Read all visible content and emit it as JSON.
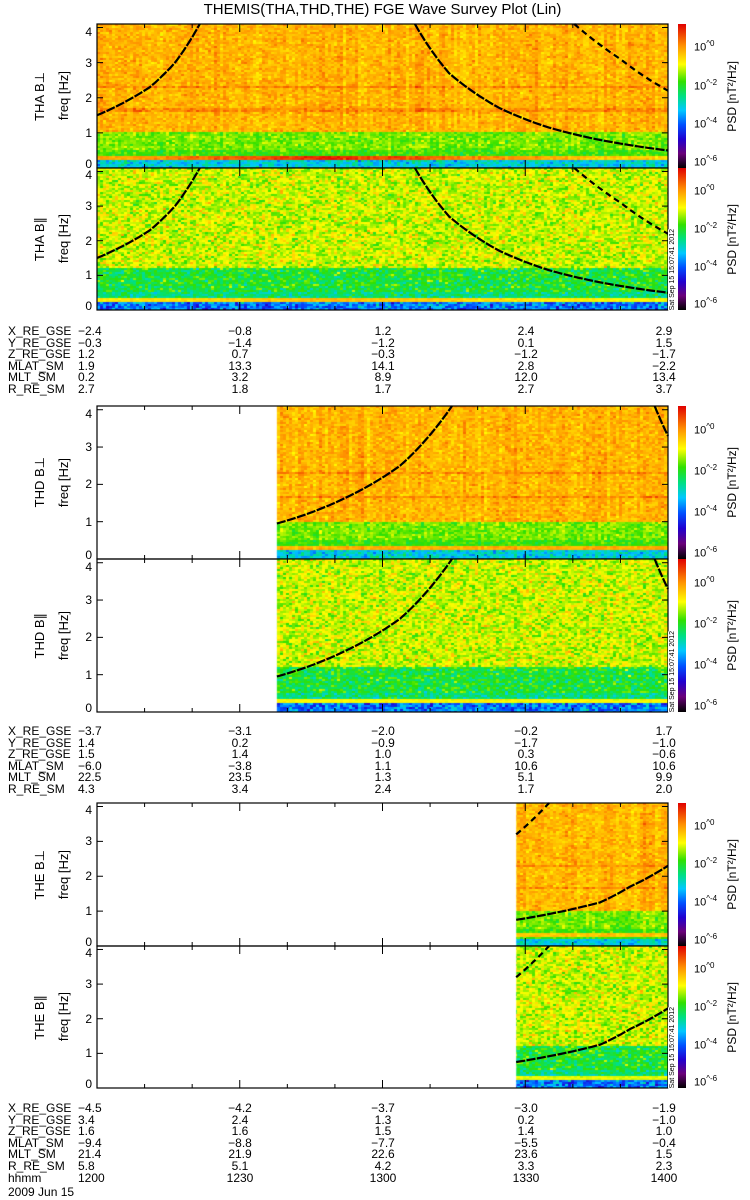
{
  "title": "THEMIS(THA,THD,THE) FGE Wave Survey Plot (Lin)",
  "colorbar": {
    "label": "PSD [nT²/Hz]",
    "ticks": [
      "10^0",
      "10^-2",
      "10^-4",
      "10^-6"
    ],
    "tick_exponents": [
      0,
      -2,
      -4,
      -6
    ],
    "range_log10": [
      -6.4,
      1.1
    ],
    "stamp": "Sat Sep 15 15:07:41 2012"
  },
  "chart_data": {
    "type": "heatmap",
    "title": "THEMIS(THA,THD,THE) FGE Wave Survey Plot (Lin)",
    "x_unit": "minutes after 12:00 UT",
    "xlim": [
      0,
      120
    ],
    "ylabel": "freq [Hz]",
    "ylim": [
      0,
      4.1
    ],
    "yticks": [
      "0",
      "1",
      "2",
      "3",
      "4"
    ],
    "ytick_values": [
      0,
      1,
      2,
      3,
      4
    ],
    "panels": [
      {
        "ylabel": "THA B⊥",
        "kind": "perp",
        "data_start": 0,
        "pc2_band": 0.8,
        "curves": [
          {
            "style": "solid",
            "points": [
              [
                0,
                1.5
              ],
              [
                11.1,
                2.3
              ],
              [
                16.4,
                3.0
              ],
              [
                21.6,
                4.1
              ]
            ]
          },
          {
            "style": "solid",
            "points": [
              [
                66.8,
                4.1
              ],
              [
                74,
                2.7
              ],
              [
                84.7,
                1.7
              ],
              [
                95,
                1.15
              ],
              [
                105.7,
                0.8
              ],
              [
                120,
                0.5
              ]
            ]
          },
          {
            "style": "dashed",
            "points": [
              [
                100.3,
                4.1
              ],
              [
                110,
                3.1
              ],
              [
                120,
                2.2
              ]
            ]
          }
        ]
      },
      {
        "ylabel": "THA B∥",
        "kind": "par",
        "data_start": 0,
        "pc2_band": -0.4,
        "curves": [
          {
            "style": "solid",
            "points": [
              [
                0,
                1.5
              ],
              [
                11.1,
                2.3
              ],
              [
                16.4,
                3.0
              ],
              [
                21.6,
                4.1
              ]
            ]
          },
          {
            "style": "solid",
            "points": [
              [
                66.8,
                4.1
              ],
              [
                74,
                2.7
              ],
              [
                84.7,
                1.7
              ],
              [
                95,
                1.15
              ],
              [
                105.7,
                0.8
              ],
              [
                120,
                0.5
              ]
            ]
          },
          {
            "style": "dashed",
            "points": [
              [
                100.3,
                4.1
              ],
              [
                110,
                3.1
              ],
              [
                120,
                2.2
              ]
            ]
          }
        ]
      },
      {
        "ylabel": "THD B⊥",
        "kind": "perp",
        "data_start": 37.8,
        "pc2_band": 0.3,
        "curves": [
          {
            "style": "solid",
            "points": [
              [
                37.8,
                0.95
              ],
              [
                53.2,
                1.7
              ],
              [
                63.7,
                2.5
              ],
              [
                74.6,
                4.1
              ]
            ]
          },
          {
            "style": "solid",
            "points": [
              [
                117.2,
                4.1
              ],
              [
                120,
                3.3
              ]
            ]
          }
        ]
      },
      {
        "ylabel": "THD B∥",
        "kind": "par",
        "data_start": 37.8,
        "pc2_band": -0.8,
        "curves": [
          {
            "style": "solid",
            "points": [
              [
                37.8,
                0.95
              ],
              [
                53.2,
                1.7
              ],
              [
                63.7,
                2.5
              ],
              [
                74.6,
                4.1
              ]
            ]
          },
          {
            "style": "solid",
            "points": [
              [
                117.2,
                4.1
              ],
              [
                120,
                3.3
              ]
            ]
          }
        ]
      },
      {
        "ylabel": "THE B⊥",
        "kind": "perp",
        "data_start": 88.1,
        "pc2_band": 0.0,
        "curves": [
          {
            "style": "solid",
            "points": [
              [
                88.1,
                0.75
              ],
              [
                105.7,
                1.25
              ],
              [
                112,
                1.7
              ],
              [
                120,
                2.3
              ]
            ]
          },
          {
            "style": "dashed",
            "points": [
              [
                88.1,
                3.2
              ],
              [
                95,
                4.1
              ]
            ]
          }
        ]
      },
      {
        "ylabel": "THE B∥",
        "kind": "par",
        "data_start": 88.1,
        "pc2_band": -1.0,
        "curves": [
          {
            "style": "solid",
            "points": [
              [
                88.1,
                0.75
              ],
              [
                105.7,
                1.25
              ],
              [
                112,
                1.7
              ],
              [
                120,
                2.3
              ]
            ]
          },
          {
            "style": "dashed",
            "points": [
              [
                88.1,
                3.2
              ],
              [
                95,
                4.1
              ]
            ]
          }
        ]
      }
    ]
  },
  "tables": [
    {
      "rows": [
        {
          "label": "X_RE_GSE",
          "values": [
            "−2.4",
            "−0.8",
            "1.2",
            "2.4",
            "2.9"
          ]
        },
        {
          "label": "Y_RE_GSE",
          "values": [
            "−0.3",
            "−1.4",
            "−1.2",
            "0.1",
            "1.5"
          ]
        },
        {
          "label": "Z_RE_GSE",
          "values": [
            "1.2",
            "0.7",
            "−0.3",
            "−1.2",
            "−1.7"
          ]
        },
        {
          "label": "MLAT_SM",
          "values": [
            "1.9",
            "13.3",
            "14.1",
            "2.8",
            "−2.2"
          ]
        },
        {
          "label": "MLT_SM",
          "values": [
            "0.2",
            "3.2",
            "8.9",
            "12.0",
            "13.4"
          ]
        },
        {
          "label": "R_RE_SM",
          "values": [
            "2.7",
            "1.8",
            "1.7",
            "2.7",
            "3.7"
          ]
        }
      ]
    },
    {
      "rows": [
        {
          "label": "X_RE_GSE",
          "values": [
            "−3.7",
            "−3.1",
            "−2.0",
            "−0.2",
            "1.7"
          ]
        },
        {
          "label": "Y_RE_GSE",
          "values": [
            "1.4",
            "0.2",
            "−0.9",
            "−1.7",
            "−1.0"
          ]
        },
        {
          "label": "Z_RE_GSE",
          "values": [
            "1.5",
            "1.4",
            "1.0",
            "0.3",
            "−0.6"
          ]
        },
        {
          "label": "MLAT_SM",
          "values": [
            "−6.0",
            "−3.8",
            "1.1",
            "10.6",
            "10.6"
          ]
        },
        {
          "label": "MLT_SM",
          "values": [
            "22.5",
            "23.5",
            "1.3",
            "5.1",
            "9.9"
          ]
        },
        {
          "label": "R_RE_SM",
          "values": [
            "4.3",
            "3.4",
            "2.4",
            "1.7",
            "2.0"
          ]
        }
      ]
    },
    {
      "rows": [
        {
          "label": "X_RE_GSE",
          "values": [
            "−4.5",
            "−4.2",
            "−3.7",
            "−3.0",
            "−1.9"
          ]
        },
        {
          "label": "Y_RE_GSE",
          "values": [
            "3.4",
            "2.4",
            "1.3",
            "0.2",
            "−1.0"
          ]
        },
        {
          "label": "Z_RE_GSE",
          "values": [
            "1.6",
            "1.6",
            "1.5",
            "1.4",
            "1.0"
          ]
        },
        {
          "label": "MLAT_SM",
          "values": [
            "−9.4",
            "−8.8",
            "−7.7",
            "−5.5",
            "−0.4"
          ]
        },
        {
          "label": "MLT_SM",
          "values": [
            "21.4",
            "21.9",
            "22.6",
            "23.6",
            "1.5"
          ]
        },
        {
          "label": "R_RE_SM",
          "values": [
            "5.8",
            "5.1",
            "4.2",
            "3.3",
            "2.3"
          ]
        },
        {
          "label": "hhmm",
          "values": [
            "1200",
            "1230",
            "1300",
            "1330",
            "1400"
          ]
        }
      ]
    }
  ],
  "date": "2009 Jun 15"
}
